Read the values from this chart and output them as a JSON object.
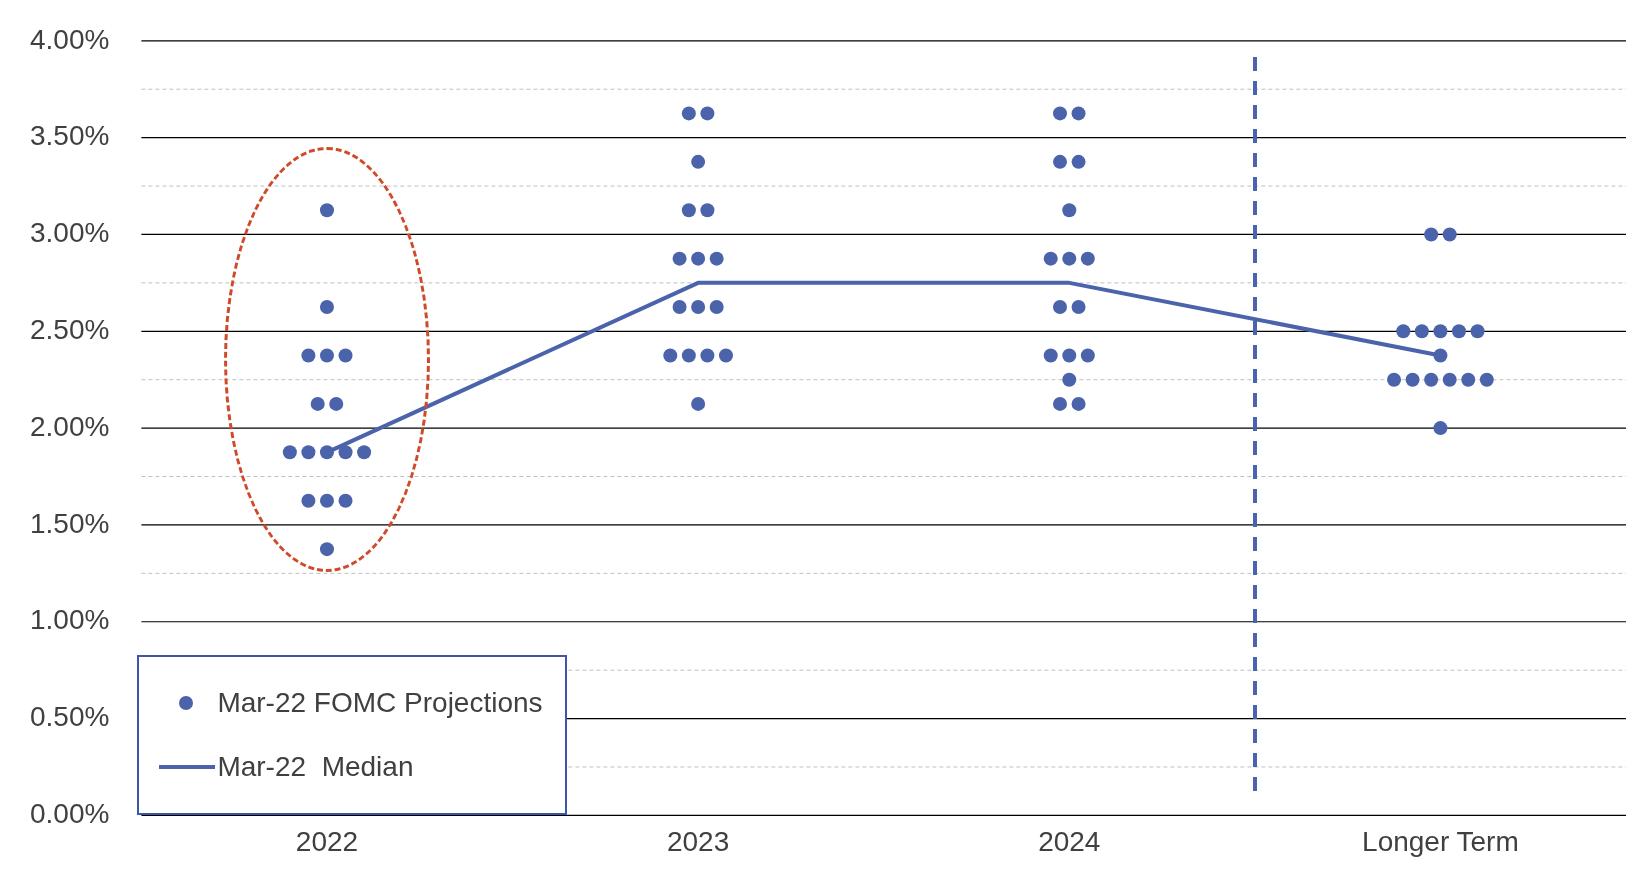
{
  "chart_data": {
    "type": "scatter",
    "categories": [
      "2022",
      "2023",
      "2024",
      "Longer Term"
    ],
    "series": [
      {
        "name": "Mar-22 FOMC Projections",
        "color": "#4a63aa",
        "values": [
          3.125,
          3.625,
          3.625,
          3.0
        ]
      },
      {
        "color": "#4a63aa",
        "values": [
          2.625,
          3.625,
          3.625,
          3.0
        ]
      },
      {
        "color": "#4a63aa",
        "values": [
          2.375,
          3.375,
          3.375,
          2.5
        ]
      },
      {
        "color": "#4a63aa",
        "values": [
          2.375,
          3.125,
          3.375,
          2.5
        ]
      },
      {
        "color": "#4a63aa",
        "values": [
          2.375,
          3.125,
          3.125,
          2.5
        ]
      },
      {
        "color": "#4a63aa",
        "values": [
          2.125,
          2.875,
          2.875,
          2.5
        ]
      },
      {
        "color": "#4a63aa",
        "values": [
          2.125,
          2.875,
          2.875,
          2.5
        ]
      },
      {
        "color": "#4a63aa",
        "values": [
          1.875,
          2.875,
          2.875,
          2.375
        ]
      },
      {
        "color": "#4a63aa",
        "values": [
          1.875,
          2.625,
          2.625,
          2.25
        ]
      },
      {
        "color": "#4a63aa",
        "values": [
          1.875,
          2.625,
          2.625,
          2.25
        ]
      },
      {
        "color": "#4a63aa",
        "values": [
          1.875,
          2.625,
          2.375,
          2.25
        ]
      },
      {
        "color": "#4a63aa",
        "values": [
          1.875,
          2.375,
          2.375,
          2.25
        ]
      },
      {
        "color": "#4a63aa",
        "values": [
          1.625,
          2.375,
          2.375,
          2.25
        ]
      },
      {
        "color": "#4a63aa",
        "values": [
          1.625,
          2.375,
          2.25,
          2.25
        ]
      },
      {
        "color": "#4a63aa",
        "values": [
          1.625,
          2.375,
          2.125,
          2.0
        ]
      },
      {
        "color": "#4a63aa",
        "values": [
          1.375,
          2.125,
          2.125,
          null
        ]
      },
      {
        "name": "Mar-22  Median",
        "type": "line",
        "color": "#4a63aa",
        "marker": "none",
        "values": [
          1.875,
          2.75,
          2.75,
          2.375
        ]
      }
    ],
    "ylim": [
      0,
      4
    ],
    "yticks": [
      {
        "value": 0,
        "label": "0.00%"
      },
      {
        "value": 0.25,
        "label": null
      },
      {
        "value": 0.5,
        "label": "0.50%"
      },
      {
        "value": 0.75,
        "label": null
      },
      {
        "value": 1,
        "label": "1.00%"
      },
      {
        "value": 1.25,
        "label": null
      },
      {
        "value": 1.5,
        "label": "1.50%"
      },
      {
        "value": 1.75,
        "label": null
      },
      {
        "value": 2,
        "label": "2.00%"
      },
      {
        "value": 2.25,
        "label": null
      },
      {
        "value": 2.5,
        "label": "2.50%"
      },
      {
        "value": 2.75,
        "label": null
      },
      {
        "value": 3,
        "label": "3.00%"
      },
      {
        "value": 3.25,
        "label": null
      },
      {
        "value": 3.5,
        "label": "3.50%"
      },
      {
        "value": 3.75,
        "label": null
      },
      {
        "value": 4,
        "label": "4.00%"
      }
    ],
    "grid": "y",
    "legend": "bottom left",
    "marker": "circle"
  }
}
